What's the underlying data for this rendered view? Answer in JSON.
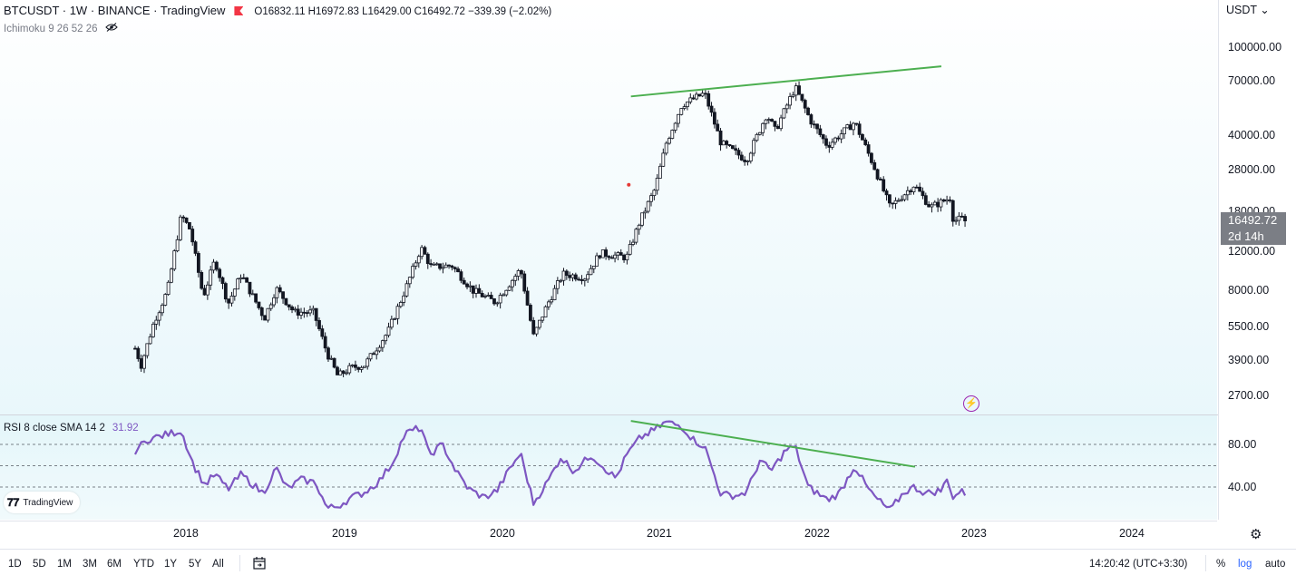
{
  "header": {
    "symbol": "BTCUSDT · 1W · BINANCE · TradingView",
    "ohlc": "O16832.11 H16972.83 L16429.00 C16492.72 −339.39 (−2.02%)"
  },
  "indicator_main": {
    "label": "Ichimoku 9 26 52 26",
    "icon": "eye-off-icon"
  },
  "indicator_rsi": {
    "label": "RSI 8 close SMA 14 2",
    "value": "31.92"
  },
  "logo": {
    "text": "TradingView"
  },
  "price_scale": {
    "currency": "USDT",
    "ticks": [
      "100000.00",
      "70000.00",
      "40000.00",
      "28000.00",
      "18000.00",
      "12000.00",
      "8000.00",
      "5500.00",
      "3900.00",
      "2700.00"
    ],
    "last_price": "16492.72",
    "countdown": "2d 14h"
  },
  "rsi_scale": {
    "ticks": [
      "80.00",
      "40.00"
    ]
  },
  "time_axis": {
    "labels": [
      "2018",
      "2019",
      "2020",
      "2021",
      "2022",
      "2023",
      "2024"
    ]
  },
  "bottom_bar": {
    "ranges": [
      "1D",
      "5D",
      "1M",
      "3M",
      "6M",
      "YTD",
      "1Y",
      "5Y",
      "All"
    ],
    "clock": "14:20:42 (UTC+3:30)",
    "percent": "%",
    "log": "log",
    "auto": "auto"
  },
  "colors": {
    "candle": "#131722",
    "rsi": "#7e57c2",
    "trendline": "#4caf50",
    "accent": "#2962ff",
    "badge": "#7b7e85"
  },
  "chart_data": [
    {
      "type": "candlestick",
      "title": "BTCUSDT · 1W · BINANCE",
      "x_axis": {
        "type": "time",
        "range": [
          "2017-09-01",
          "2024-06-01"
        ],
        "ticks": [
          "2018",
          "2019",
          "2020",
          "2021",
          "2022",
          "2023",
          "2024"
        ]
      },
      "y_axis": {
        "scale": "log",
        "range": [
          2300,
          140000
        ],
        "unit": "USDT"
      },
      "price_path": [
        [
          "2017-09-01",
          4400
        ],
        [
          "2017-09-15",
          3700
        ],
        [
          "2017-10-15",
          5800
        ],
        [
          "2017-11-15",
          8000
        ],
        [
          "2017-12-17",
          17500
        ],
        [
          "2018-01-07",
          15000
        ],
        [
          "2018-02-06",
          7500
        ],
        [
          "2018-03-05",
          11000
        ],
        [
          "2018-04-05",
          7000
        ],
        [
          "2018-05-05",
          9500
        ],
        [
          "2018-06-28",
          6000
        ],
        [
          "2018-07-25",
          8200
        ],
        [
          "2018-09-05",
          6400
        ],
        [
          "2018-10-20",
          6400
        ],
        [
          "2018-11-20",
          4200
        ],
        [
          "2018-12-15",
          3300
        ],
        [
          "2019-01-15",
          3600
        ],
        [
          "2019-02-15",
          3700
        ],
        [
          "2019-04-10",
          5200
        ],
        [
          "2019-05-25",
          8500
        ],
        [
          "2019-06-26",
          12500
        ],
        [
          "2019-07-20",
          10200
        ],
        [
          "2019-09-05",
          10400
        ],
        [
          "2019-10-25",
          8000
        ],
        [
          "2019-12-15",
          7100
        ],
        [
          "2020-02-12",
          10000
        ],
        [
          "2020-03-13",
          5000
        ],
        [
          "2020-04-15",
          7000
        ],
        [
          "2020-05-20",
          9500
        ],
        [
          "2020-07-10",
          9200
        ],
        [
          "2020-08-15",
          11800
        ],
        [
          "2020-10-15",
          11300
        ],
        [
          "2020-11-15",
          16500
        ],
        [
          "2020-12-20",
          23000
        ],
        [
          "2021-01-15",
          37000
        ],
        [
          "2021-02-20",
          55000
        ],
        [
          "2021-04-14",
          62000
        ],
        [
          "2021-05-22",
          37000
        ],
        [
          "2021-07-20",
          31000
        ],
        [
          "2021-09-05",
          50000
        ],
        [
          "2021-09-25",
          42000
        ],
        [
          "2021-11-10",
          66000
        ],
        [
          "2021-12-15",
          47000
        ],
        [
          "2022-01-24",
          36000
        ],
        [
          "2022-03-28",
          46000
        ],
        [
          "2022-05-12",
          29000
        ],
        [
          "2022-06-18",
          19000
        ],
        [
          "2022-08-13",
          24000
        ],
        [
          "2022-09-20",
          19000
        ],
        [
          "2022-11-05",
          21000
        ],
        [
          "2022-11-12",
          16500
        ],
        [
          "2022-12-03",
          16900
        ],
        [
          "2022-12-10",
          16492.72
        ]
      ],
      "last_close": 16492.72,
      "ohlc_last": {
        "open": 16832.11,
        "high": 16972.83,
        "low": 16429.0,
        "close": 16492.72
      },
      "annotations": [
        {
          "type": "trendline",
          "color": "#4caf50",
          "points": [
            [
              "2020-10-25",
              60000
            ],
            [
              "2022-10-15",
              82000
            ]
          ]
        },
        {
          "type": "dot",
          "color": "#e53935",
          "point": [
            "2020-10-20",
            24000
          ]
        }
      ]
    },
    {
      "type": "line",
      "title": "RSI 8 close SMA 14 2",
      "x_axis": {
        "type": "time",
        "range": [
          "2017-09-01",
          "2024-06-01"
        ]
      },
      "y_axis": {
        "range": [
          12,
          108
        ],
        "ticks": [
          80,
          40
        ]
      },
      "reference_lines": [
        80,
        60,
        40
      ],
      "series": [
        {
          "color": "#7e57c2",
          "points": [
            [
              "2017-09-01",
              74
            ],
            [
              "2017-10-01",
              85
            ],
            [
              "2017-11-01",
              88
            ],
            [
              "2017-12-17",
              93
            ],
            [
              "2018-01-15",
              60
            ],
            [
              "2018-02-10",
              42
            ],
            [
              "2018-03-05",
              52
            ],
            [
              "2018-04-05",
              38
            ],
            [
              "2018-05-05",
              52
            ],
            [
              "2018-06-25",
              34
            ],
            [
              "2018-07-25",
              58
            ],
            [
              "2018-08-20",
              38
            ],
            [
              "2018-09-20",
              47
            ],
            [
              "2018-10-25",
              44
            ],
            [
              "2018-11-20",
              20
            ],
            [
              "2018-12-15",
              22
            ],
            [
              "2019-01-15",
              30
            ],
            [
              "2019-02-15",
              35
            ],
            [
              "2019-03-20",
              45
            ],
            [
              "2019-04-20",
              62
            ],
            [
              "2019-05-20",
              90
            ],
            [
              "2019-06-26",
              96
            ],
            [
              "2019-07-15",
              70
            ],
            [
              "2019-08-15",
              80
            ],
            [
              "2019-09-15",
              55
            ],
            [
              "2019-10-15",
              38
            ],
            [
              "2019-11-20",
              30
            ],
            [
              "2019-12-20",
              37
            ],
            [
              "2020-01-15",
              55
            ],
            [
              "2020-02-12",
              72
            ],
            [
              "2020-03-13",
              25
            ],
            [
              "2020-04-15",
              45
            ],
            [
              "2020-05-15",
              68
            ],
            [
              "2020-06-15",
              55
            ],
            [
              "2020-07-25",
              70
            ],
            [
              "2020-08-20",
              60
            ],
            [
              "2020-09-20",
              48
            ],
            [
              "2020-10-15",
              70
            ],
            [
              "2020-11-15",
              86
            ],
            [
              "2020-12-20",
              94
            ],
            [
              "2021-01-15",
              101
            ],
            [
              "2021-02-20",
              97
            ],
            [
              "2021-03-20",
              84
            ],
            [
              "2021-04-14",
              78
            ],
            [
              "2021-05-22",
              33
            ],
            [
              "2021-06-25",
              32
            ],
            [
              "2021-07-20",
              35
            ],
            [
              "2021-08-20",
              65
            ],
            [
              "2021-09-15",
              55
            ],
            [
              "2021-10-20",
              75
            ],
            [
              "2021-11-10",
              78
            ],
            [
              "2021-12-10",
              40
            ],
            [
              "2022-01-24",
              28
            ],
            [
              "2022-02-20",
              34
            ],
            [
              "2022-03-28",
              60
            ],
            [
              "2022-04-25",
              40
            ],
            [
              "2022-05-15",
              30
            ],
            [
              "2022-06-18",
              18
            ],
            [
              "2022-07-20",
              35
            ],
            [
              "2022-08-13",
              40
            ],
            [
              "2022-09-10",
              34
            ],
            [
              "2022-10-15",
              37
            ],
            [
              "2022-10-30",
              48
            ],
            [
              "2022-11-12",
              29
            ],
            [
              "2022-11-28",
              37
            ],
            [
              "2022-12-10",
              32
            ]
          ]
        }
      ],
      "annotations": [
        {
          "type": "trendline",
          "color": "#4caf50",
          "points": [
            [
              "2020-10-25",
              102
            ],
            [
              "2022-08-15",
              59
            ]
          ]
        }
      ]
    }
  ]
}
